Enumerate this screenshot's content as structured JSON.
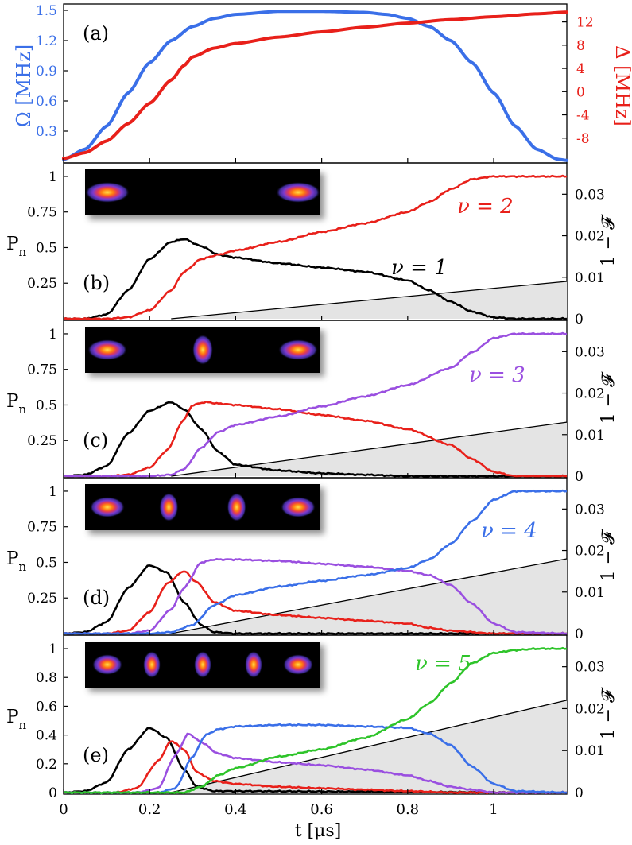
{
  "chart_data": {
    "type": "line",
    "xlabel": "t [μs]",
    "xlim": [
      0,
      1.17
    ],
    "x_ticks": [
      "0",
      "0.2",
      "0.4",
      "0.6",
      "0.8",
      "1"
    ],
    "colors": {
      "n1": "#000000",
      "n2": "#e8201a",
      "n3": "#9a4fe0",
      "n4": "#3a6fe8",
      "n5": "#2ec42a",
      "omega": "#3a6fe8",
      "delta": "#e8201a",
      "infid": "#000000",
      "shade": "#e4e4e4"
    },
    "panels": [
      {
        "id": "a",
        "label": "(a)",
        "left_ylabel": "Ω [MHz]",
        "right_ylabel": "Δ [MHz]",
        "left_ylim": [
          0,
          1.5
        ],
        "left_ticks": [
          "0.3",
          "0.6",
          "0.9",
          "1.2",
          "1.5"
        ],
        "right_ylim": [
          -12,
          14
        ],
        "right_ticks": [
          "-8",
          "-4",
          "0",
          "4",
          "8",
          "12"
        ],
        "series": [
          {
            "name": "Ω",
            "axis": "left",
            "color": "#3a6fe8",
            "x": [
              0,
              0.05,
              0.1,
              0.15,
              0.2,
              0.25,
              0.3,
              0.35,
              0.4,
              0.5,
              0.6,
              0.7,
              0.75,
              0.8,
              0.85,
              0.9,
              0.95,
              1.0,
              1.05,
              1.1,
              1.15,
              1.17
            ],
            "y": [
              0.02,
              0.12,
              0.35,
              0.68,
              0.98,
              1.2,
              1.34,
              1.42,
              1.46,
              1.49,
              1.49,
              1.48,
              1.46,
              1.42,
              1.34,
              1.2,
              0.98,
              0.68,
              0.35,
              0.12,
              0.02,
              0.01
            ]
          },
          {
            "name": "Δ",
            "axis": "right",
            "color": "#e8201a",
            "x": [
              0,
              0.05,
              0.1,
              0.15,
              0.2,
              0.25,
              0.28,
              0.3,
              0.35,
              0.4,
              0.5,
              0.6,
              0.7,
              0.8,
              0.9,
              1.0,
              1.1,
              1.17
            ],
            "y": [
              -11.5,
              -10.5,
              -8.5,
              -5.5,
              -2,
              2,
              4.5,
              6,
              7.5,
              8.3,
              9.4,
              10.3,
              11.1,
              11.8,
              12.4,
              12.9,
              13.4,
              13.7
            ]
          }
        ]
      },
      {
        "id": "b",
        "label": "(b)",
        "ylabel": "P",
        "ylabel_sub": "n",
        "ylim": [
          0,
          1.05
        ],
        "left_ticks": [
          "0.25",
          "0.5",
          "0.75",
          "1"
        ],
        "right_ylabel": "1 − 𝓕",
        "right_ylim": [
          0,
          0.036
        ],
        "right_ticks": [
          "0",
          "0.01",
          "0.02",
          "0.03"
        ],
        "infidelity": {
          "x": [
            0.25,
            1.17
          ],
          "y": [
            0,
            0.009
          ]
        },
        "nu_label": "ν = 2",
        "nu_color": "#e8201a",
        "extra_label": "ν = 1",
        "series": [
          {
            "n": 1,
            "color": "#000000",
            "x": [
              0,
              0.05,
              0.1,
              0.15,
              0.2,
              0.25,
              0.28,
              0.32,
              0.36,
              0.4,
              0.5,
              0.6,
              0.7,
              0.8,
              0.85,
              0.9,
              0.95,
              1.0,
              1.05,
              1.17
            ],
            "y": [
              0,
              0,
              0.03,
              0.2,
              0.42,
              0.54,
              0.56,
              0.51,
              0.45,
              0.43,
              0.39,
              0.36,
              0.33,
              0.27,
              0.2,
              0.12,
              0.05,
              0.01,
              0,
              0
            ]
          },
          {
            "n": 2,
            "color": "#e8201a",
            "x": [
              0,
              0.1,
              0.15,
              0.2,
              0.25,
              0.28,
              0.32,
              0.36,
              0.4,
              0.5,
              0.6,
              0.7,
              0.8,
              0.85,
              0.9,
              0.95,
              1.0,
              1.05,
              1.17
            ],
            "y": [
              0,
              0,
              0.01,
              0.06,
              0.2,
              0.33,
              0.42,
              0.45,
              0.48,
              0.54,
              0.61,
              0.67,
              0.75,
              0.82,
              0.91,
              0.98,
              1.0,
              1.0,
              1.0
            ]
          }
        ]
      },
      {
        "id": "c",
        "label": "(c)",
        "ylabel": "P",
        "ylabel_sub": "n",
        "ylim": [
          0,
          1.05
        ],
        "left_ticks": [
          "0.25",
          "0.5",
          "0.75",
          "1"
        ],
        "right_ylabel": "1 − 𝓕",
        "right_ylim": [
          0,
          0.036
        ],
        "right_ticks": [
          "0",
          "0.01",
          "0.02",
          "0.03"
        ],
        "infidelity": {
          "x": [
            0.25,
            1.17
          ],
          "y": [
            0,
            0.013
          ]
        },
        "nu_label": "ν = 3",
        "nu_color": "#9a4fe0",
        "series": [
          {
            "n": 1,
            "color": "#000000",
            "x": [
              0,
              0.05,
              0.1,
              0.15,
              0.2,
              0.25,
              0.28,
              0.32,
              0.36,
              0.4,
              0.5,
              0.6,
              0.7,
              0.8,
              1.17
            ],
            "y": [
              0,
              0.01,
              0.07,
              0.3,
              0.46,
              0.52,
              0.47,
              0.33,
              0.17,
              0.08,
              0.04,
              0.02,
              0.01,
              0,
              0
            ]
          },
          {
            "n": 2,
            "color": "#e8201a",
            "x": [
              0,
              0.1,
              0.15,
              0.2,
              0.24,
              0.28,
              0.3,
              0.33,
              0.36,
              0.4,
              0.5,
              0.6,
              0.7,
              0.8,
              0.9,
              0.95,
              1.0,
              1.05,
              1.17
            ],
            "y": [
              0,
              0,
              0.01,
              0.06,
              0.18,
              0.4,
              0.5,
              0.52,
              0.51,
              0.5,
              0.47,
              0.43,
              0.39,
              0.33,
              0.22,
              0.12,
              0.03,
              0,
              0
            ]
          },
          {
            "n": 3,
            "color": "#9a4fe0",
            "x": [
              0,
              0.2,
              0.25,
              0.28,
              0.32,
              0.36,
              0.4,
              0.5,
              0.6,
              0.7,
              0.8,
              0.9,
              0.95,
              1.0,
              1.05,
              1.17
            ],
            "y": [
              0,
              0,
              0.01,
              0.05,
              0.2,
              0.31,
              0.36,
              0.42,
              0.49,
              0.56,
              0.64,
              0.76,
              0.87,
              0.97,
              1.0,
              1.0
            ]
          }
        ]
      },
      {
        "id": "d",
        "label": "(d)",
        "ylabel": "P",
        "ylabel_sub": "n",
        "ylim": [
          0,
          1.05
        ],
        "left_ticks": [
          "0.25",
          "0.5",
          "0.75",
          "1"
        ],
        "right_ylabel": "1 − 𝓕",
        "right_ylim": [
          0,
          0.036
        ],
        "right_ticks": [
          "0",
          "0.01",
          "0.02",
          "0.03"
        ],
        "infidelity": {
          "x": [
            0.25,
            1.17
          ],
          "y": [
            0,
            0.018
          ]
        },
        "nu_label": "ν = 4",
        "nu_color": "#3a6fe8",
        "series": [
          {
            "n": 1,
            "color": "#000000",
            "x": [
              0,
              0.05,
              0.1,
              0.15,
              0.2,
              0.24,
              0.28,
              0.32,
              0.35,
              0.4,
              1.17
            ],
            "y": [
              0,
              0.01,
              0.08,
              0.32,
              0.48,
              0.43,
              0.22,
              0.06,
              0.01,
              0,
              0
            ]
          },
          {
            "n": 2,
            "color": "#e8201a",
            "x": [
              0,
              0.1,
              0.15,
              0.2,
              0.24,
              0.28,
              0.31,
              0.35,
              0.4,
              0.5,
              0.6,
              0.7,
              0.8,
              0.85,
              0.9,
              1.0,
              1.17
            ],
            "y": [
              0,
              0,
              0.02,
              0.15,
              0.35,
              0.44,
              0.36,
              0.22,
              0.16,
              0.13,
              0.11,
              0.09,
              0.07,
              0.04,
              0.02,
              0,
              0
            ]
          },
          {
            "n": 3,
            "color": "#9a4fe0",
            "x": [
              0,
              0.15,
              0.2,
              0.25,
              0.28,
              0.32,
              0.35,
              0.4,
              0.5,
              0.6,
              0.7,
              0.8,
              0.85,
              0.9,
              0.95,
              1.0,
              1.05,
              1.17
            ],
            "y": [
              0,
              0,
              0.02,
              0.17,
              0.32,
              0.5,
              0.52,
              0.52,
              0.51,
              0.49,
              0.47,
              0.44,
              0.41,
              0.34,
              0.21,
              0.07,
              0.01,
              0
            ]
          },
          {
            "n": 4,
            "color": "#3a6fe8",
            "x": [
              0,
              0.2,
              0.25,
              0.3,
              0.35,
              0.4,
              0.5,
              0.6,
              0.7,
              0.8,
              0.85,
              0.9,
              0.95,
              1.0,
              1.05,
              1.17
            ],
            "y": [
              0,
              0,
              0.01,
              0.06,
              0.2,
              0.27,
              0.33,
              0.37,
              0.41,
              0.46,
              0.52,
              0.63,
              0.79,
              0.94,
              1.0,
              1.0
            ]
          }
        ]
      },
      {
        "id": "e",
        "label": "(e)",
        "ylabel": "P",
        "ylabel_sub": "n",
        "ylim": [
          0,
          1.05
        ],
        "left_ticks": [
          "0",
          "0.2",
          "0.4",
          "0.6",
          "0.8",
          "1"
        ],
        "right_ylabel": "1 − 𝓕",
        "right_ylim": [
          0,
          0.036
        ],
        "right_ticks": [
          "0",
          "0.01",
          "0.02",
          "0.03"
        ],
        "infidelity": {
          "x": [
            0.25,
            1.17
          ],
          "y": [
            0,
            0.022
          ]
        },
        "nu_label": "ν = 5",
        "nu_color": "#2ec42a",
        "series": [
          {
            "n": 1,
            "color": "#000000",
            "x": [
              0,
              0.05,
              0.1,
              0.15,
              0.2,
              0.24,
              0.28,
              0.31,
              0.35,
              1.17
            ],
            "y": [
              0,
              0.01,
              0.07,
              0.3,
              0.45,
              0.38,
              0.16,
              0.04,
              0.01,
              0
            ]
          },
          {
            "n": 2,
            "color": "#e8201a",
            "x": [
              0,
              0.12,
              0.17,
              0.22,
              0.25,
              0.28,
              0.31,
              0.35,
              0.4,
              0.5,
              0.6,
              0.7,
              0.8,
              0.9,
              1.17
            ],
            "y": [
              0,
              0,
              0.03,
              0.22,
              0.36,
              0.3,
              0.14,
              0.08,
              0.06,
              0.04,
              0.03,
              0.02,
              0.01,
              0,
              0
            ]
          },
          {
            "n": 3,
            "color": "#9a4fe0",
            "x": [
              0,
              0.17,
              0.22,
              0.26,
              0.29,
              0.32,
              0.36,
              0.4,
              0.5,
              0.6,
              0.7,
              0.8,
              0.85,
              0.9,
              0.95,
              1.0,
              1.17
            ],
            "y": [
              0,
              0,
              0.03,
              0.26,
              0.41,
              0.35,
              0.27,
              0.24,
              0.21,
              0.19,
              0.16,
              0.12,
              0.08,
              0.04,
              0.02,
              0,
              0
            ]
          },
          {
            "n": 4,
            "color": "#3a6fe8",
            "x": [
              0,
              0.22,
              0.26,
              0.3,
              0.33,
              0.36,
              0.4,
              0.5,
              0.6,
              0.7,
              0.8,
              0.85,
              0.9,
              0.95,
              1.0,
              1.05,
              1.17
            ],
            "y": [
              0,
              0,
              0.03,
              0.25,
              0.4,
              0.44,
              0.46,
              0.47,
              0.47,
              0.46,
              0.45,
              0.41,
              0.33,
              0.18,
              0.06,
              0.01,
              0
            ]
          },
          {
            "n": 5,
            "color": "#2ec42a",
            "x": [
              0,
              0.28,
              0.32,
              0.36,
              0.4,
              0.5,
              0.6,
              0.7,
              0.8,
              0.85,
              0.9,
              0.95,
              1.0,
              1.05,
              1.1,
              1.17
            ],
            "y": [
              0,
              0,
              0.04,
              0.12,
              0.17,
              0.25,
              0.3,
              0.38,
              0.51,
              0.62,
              0.76,
              0.9,
              0.97,
              0.99,
              1.0,
              1.0
            ]
          }
        ]
      }
    ]
  }
}
